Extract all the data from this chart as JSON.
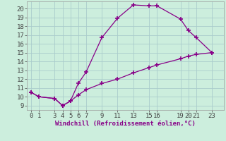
{
  "xlabel": "Windchill (Refroidissement éolien,°C)",
  "line1_x": [
    0,
    1,
    3,
    4,
    5,
    6,
    7,
    9,
    11,
    13,
    15,
    16,
    19,
    20,
    21,
    23
  ],
  "line1_y": [
    10.5,
    10.0,
    9.8,
    9.0,
    9.5,
    11.5,
    12.8,
    16.7,
    18.9,
    20.4,
    20.3,
    20.3,
    18.8,
    17.5,
    16.7,
    15.0
  ],
  "line2_x": [
    0,
    1,
    3,
    4,
    5,
    6,
    7,
    9,
    11,
    13,
    15,
    16,
    19,
    20,
    21,
    23
  ],
  "line2_y": [
    10.5,
    10.0,
    9.8,
    9.0,
    9.5,
    10.2,
    10.8,
    11.5,
    12.0,
    12.7,
    13.3,
    13.6,
    14.3,
    14.6,
    14.8,
    15.0
  ],
  "line_color": "#880088",
  "bg_color": "#cceedd",
  "grid_color": "#aacccc",
  "xlim": [
    -0.5,
    24.5
  ],
  "ylim": [
    8.5,
    20.8
  ],
  "xticks": [
    0,
    1,
    3,
    4,
    5,
    6,
    7,
    9,
    11,
    13,
    15,
    16,
    19,
    20,
    21,
    23
  ],
  "yticks": [
    9,
    10,
    11,
    12,
    13,
    14,
    15,
    16,
    17,
    18,
    19,
    20
  ],
  "marker": "+",
  "markersize": 4,
  "linewidth": 0.9,
  "tick_fontsize": 6.5,
  "label_fontsize": 6.5
}
